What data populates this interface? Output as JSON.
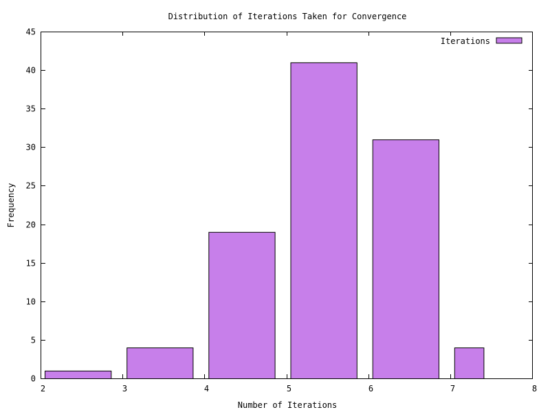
{
  "chart_data": {
    "type": "bar",
    "title": "Distribution of Iterations Taken for Convergence",
    "xlabel": "Number of Iterations",
    "ylabel": "Frequency",
    "xlim": [
      2,
      8
    ],
    "ylim": [
      0,
      45
    ],
    "x_ticks": [
      "2",
      "3",
      "4",
      "5",
      "6",
      "7",
      "8"
    ],
    "y_ticks": [
      "0",
      "5",
      "10",
      "15",
      "20",
      "25",
      "30",
      "35",
      "40",
      "45"
    ],
    "grid": false,
    "legend_position": "top-right",
    "series": [
      {
        "name": "Iterations",
        "color": "#c77fea",
        "bars": [
          {
            "x_start": 2.0,
            "x_end": 2.9,
            "value": 1
          },
          {
            "x_start": 3.0,
            "x_end": 3.9,
            "value": 4
          },
          {
            "x_start": 4.0,
            "x_end": 4.9,
            "value": 19
          },
          {
            "x_start": 5.0,
            "x_end": 5.9,
            "value": 41
          },
          {
            "x_start": 6.0,
            "x_end": 6.9,
            "value": 31
          },
          {
            "x_start": 7.0,
            "x_end": 7.45,
            "value": 4
          }
        ]
      }
    ]
  }
}
